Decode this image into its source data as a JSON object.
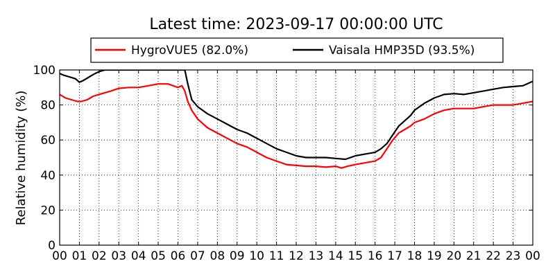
{
  "chart_data": {
    "type": "line",
    "title": "Latest time: 2023-09-17 00:00:00 UTC",
    "xlabel": "",
    "ylabel": "Relative humidity (%)",
    "ylim": [
      0,
      100
    ],
    "xlim": [
      0,
      24
    ],
    "xticks": [
      0,
      1,
      2,
      3,
      4,
      5,
      6,
      7,
      8,
      9,
      10,
      11,
      12,
      13,
      14,
      15,
      16,
      17,
      18,
      19,
      20,
      21,
      22,
      23,
      24
    ],
    "xtick_labels": [
      "00",
      "01",
      "02",
      "03",
      "04",
      "05",
      "06",
      "07",
      "08",
      "09",
      "10",
      "11",
      "12",
      "13",
      "14",
      "15",
      "16",
      "17",
      "18",
      "19",
      "20",
      "21",
      "22",
      "23",
      "00"
    ],
    "yticks": [
      0,
      20,
      40,
      60,
      80,
      100
    ],
    "ytick_labels": [
      "0",
      "20",
      "40",
      "60",
      "80",
      "100"
    ],
    "grid": true,
    "legend_position": "top-center",
    "series": [
      {
        "name": "HygroVUE5 (82.0%)",
        "color": "#ff0000",
        "x": [
          0,
          0.3,
          0.6,
          0.9,
          1.1,
          1.4,
          1.7,
          2,
          2.3,
          2.6,
          3,
          3.5,
          4,
          4.5,
          5,
          5.5,
          6,
          6.2,
          6.35,
          6.5,
          6.7,
          7,
          7.5,
          8,
          8.5,
          9,
          9.5,
          10,
          10.5,
          11,
          11.5,
          12,
          12.5,
          13,
          13.5,
          14,
          14.3,
          14.6,
          15,
          15.5,
          16,
          16.3,
          16.6,
          16.9,
          17.2,
          17.5,
          17.8,
          18,
          18.5,
          19,
          19.5,
          20,
          20.5,
          21,
          21.5,
          22,
          22.5,
          23,
          23.5,
          24
        ],
        "y": [
          86,
          84,
          83,
          82,
          82,
          83,
          85,
          86,
          87,
          88,
          89.5,
          90,
          90,
          91,
          92,
          92,
          90,
          91,
          88,
          82,
          77,
          72,
          67,
          64,
          61,
          58,
          56,
          53,
          50,
          48,
          46,
          45.5,
          45,
          45,
          44.5,
          45,
          44,
          45,
          46,
          47,
          48,
          50,
          55,
          60,
          64,
          66,
          68,
          70,
          72,
          75,
          77,
          78,
          78,
          78,
          79,
          80,
          80,
          80,
          81,
          82
        ]
      },
      {
        "name": "Vaisala HMP35D (93.5%)",
        "color": "#000000",
        "x": [
          0,
          0.2,
          0.5,
          0.8,
          1,
          1.2,
          1.5,
          1.8,
          2,
          2.3,
          2.6,
          3,
          3.5,
          4,
          4.5,
          5,
          5.5,
          6,
          6.2,
          6.35,
          6.5,
          6.7,
          7,
          7.5,
          8,
          8.5,
          9,
          9.5,
          10,
          10.5,
          11,
          11.5,
          12,
          12.5,
          13,
          13.5,
          14,
          14.5,
          15,
          15.5,
          16,
          16.3,
          16.6,
          16.9,
          17.2,
          17.5,
          17.8,
          18,
          18.5,
          19,
          19.5,
          20,
          20.5,
          21,
          21.5,
          22,
          22.5,
          23,
          23.5,
          24
        ],
        "y": [
          98,
          97,
          96,
          95,
          93,
          94,
          96,
          98,
          99,
          100,
          100,
          100,
          100,
          100,
          100,
          100,
          100,
          100,
          100,
          100,
          92,
          83,
          79,
          75,
          72,
          69,
          66,
          64,
          61,
          58,
          55,
          53,
          51,
          50,
          50,
          50,
          49.5,
          49,
          51,
          52,
          53,
          55,
          58,
          63,
          68,
          71,
          74,
          77,
          81,
          84,
          86,
          86.5,
          86,
          87,
          88,
          89,
          90,
          90.5,
          91,
          93.5
        ]
      }
    ]
  }
}
